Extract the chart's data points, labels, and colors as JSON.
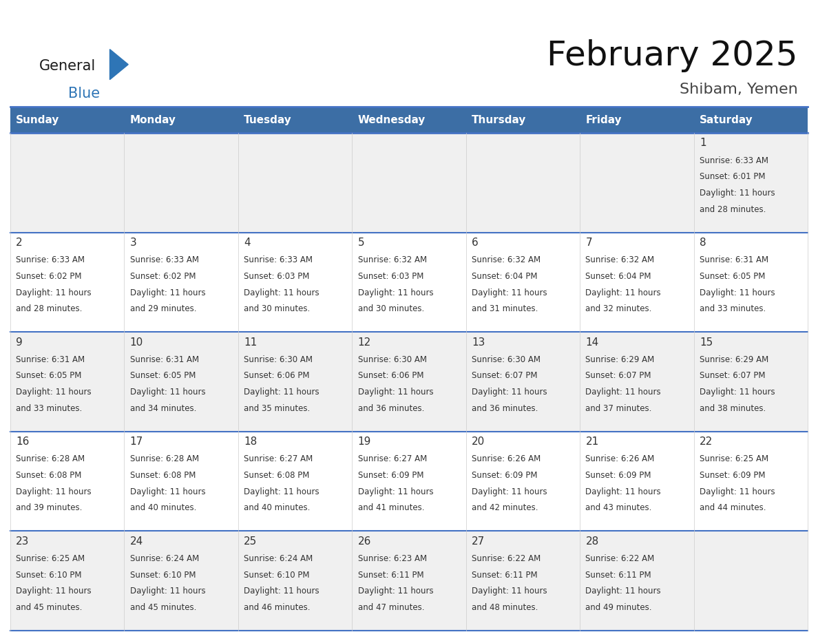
{
  "title": "February 2025",
  "subtitle": "Shibam, Yemen",
  "days_of_week": [
    "Sunday",
    "Monday",
    "Tuesday",
    "Wednesday",
    "Thursday",
    "Friday",
    "Saturday"
  ],
  "header_bg": "#3C6EA5",
  "header_text": "#FFFFFF",
  "row_bg_odd": "#F0F0F0",
  "row_bg_even": "#FFFFFF",
  "cell_border_color": "#4472C4",
  "cell_minor_border": "#CCCCCC",
  "text_color": "#333333",
  "logo_general_color": "#1A1A1A",
  "logo_blue_color": "#2E75B6",
  "days": [
    {
      "date": 1,
      "col": 6,
      "row": 0,
      "sunrise": "6:33 AM",
      "sunset": "6:01 PM",
      "daylight": "11 hours and 28 minutes."
    },
    {
      "date": 2,
      "col": 0,
      "row": 1,
      "sunrise": "6:33 AM",
      "sunset": "6:02 PM",
      "daylight": "11 hours and 28 minutes."
    },
    {
      "date": 3,
      "col": 1,
      "row": 1,
      "sunrise": "6:33 AM",
      "sunset": "6:02 PM",
      "daylight": "11 hours and 29 minutes."
    },
    {
      "date": 4,
      "col": 2,
      "row": 1,
      "sunrise": "6:33 AM",
      "sunset": "6:03 PM",
      "daylight": "11 hours and 30 minutes."
    },
    {
      "date": 5,
      "col": 3,
      "row": 1,
      "sunrise": "6:32 AM",
      "sunset": "6:03 PM",
      "daylight": "11 hours and 30 minutes."
    },
    {
      "date": 6,
      "col": 4,
      "row": 1,
      "sunrise": "6:32 AM",
      "sunset": "6:04 PM",
      "daylight": "11 hours and 31 minutes."
    },
    {
      "date": 7,
      "col": 5,
      "row": 1,
      "sunrise": "6:32 AM",
      "sunset": "6:04 PM",
      "daylight": "11 hours and 32 minutes."
    },
    {
      "date": 8,
      "col": 6,
      "row": 1,
      "sunrise": "6:31 AM",
      "sunset": "6:05 PM",
      "daylight": "11 hours and 33 minutes."
    },
    {
      "date": 9,
      "col": 0,
      "row": 2,
      "sunrise": "6:31 AM",
      "sunset": "6:05 PM",
      "daylight": "11 hours and 33 minutes."
    },
    {
      "date": 10,
      "col": 1,
      "row": 2,
      "sunrise": "6:31 AM",
      "sunset": "6:05 PM",
      "daylight": "11 hours and 34 minutes."
    },
    {
      "date": 11,
      "col": 2,
      "row": 2,
      "sunrise": "6:30 AM",
      "sunset": "6:06 PM",
      "daylight": "11 hours and 35 minutes."
    },
    {
      "date": 12,
      "col": 3,
      "row": 2,
      "sunrise": "6:30 AM",
      "sunset": "6:06 PM",
      "daylight": "11 hours and 36 minutes."
    },
    {
      "date": 13,
      "col": 4,
      "row": 2,
      "sunrise": "6:30 AM",
      "sunset": "6:07 PM",
      "daylight": "11 hours and 36 minutes."
    },
    {
      "date": 14,
      "col": 5,
      "row": 2,
      "sunrise": "6:29 AM",
      "sunset": "6:07 PM",
      "daylight": "11 hours and 37 minutes."
    },
    {
      "date": 15,
      "col": 6,
      "row": 2,
      "sunrise": "6:29 AM",
      "sunset": "6:07 PM",
      "daylight": "11 hours and 38 minutes."
    },
    {
      "date": 16,
      "col": 0,
      "row": 3,
      "sunrise": "6:28 AM",
      "sunset": "6:08 PM",
      "daylight": "11 hours and 39 minutes."
    },
    {
      "date": 17,
      "col": 1,
      "row": 3,
      "sunrise": "6:28 AM",
      "sunset": "6:08 PM",
      "daylight": "11 hours and 40 minutes."
    },
    {
      "date": 18,
      "col": 2,
      "row": 3,
      "sunrise": "6:27 AM",
      "sunset": "6:08 PM",
      "daylight": "11 hours and 40 minutes."
    },
    {
      "date": 19,
      "col": 3,
      "row": 3,
      "sunrise": "6:27 AM",
      "sunset": "6:09 PM",
      "daylight": "11 hours and 41 minutes."
    },
    {
      "date": 20,
      "col": 4,
      "row": 3,
      "sunrise": "6:26 AM",
      "sunset": "6:09 PM",
      "daylight": "11 hours and 42 minutes."
    },
    {
      "date": 21,
      "col": 5,
      "row": 3,
      "sunrise": "6:26 AM",
      "sunset": "6:09 PM",
      "daylight": "11 hours and 43 minutes."
    },
    {
      "date": 22,
      "col": 6,
      "row": 3,
      "sunrise": "6:25 AM",
      "sunset": "6:09 PM",
      "daylight": "11 hours and 44 minutes."
    },
    {
      "date": 23,
      "col": 0,
      "row": 4,
      "sunrise": "6:25 AM",
      "sunset": "6:10 PM",
      "daylight": "11 hours and 45 minutes."
    },
    {
      "date": 24,
      "col": 1,
      "row": 4,
      "sunrise": "6:24 AM",
      "sunset": "6:10 PM",
      "daylight": "11 hours and 45 minutes."
    },
    {
      "date": 25,
      "col": 2,
      "row": 4,
      "sunrise": "6:24 AM",
      "sunset": "6:10 PM",
      "daylight": "11 hours and 46 minutes."
    },
    {
      "date": 26,
      "col": 3,
      "row": 4,
      "sunrise": "6:23 AM",
      "sunset": "6:11 PM",
      "daylight": "11 hours and 47 minutes."
    },
    {
      "date": 27,
      "col": 4,
      "row": 4,
      "sunrise": "6:22 AM",
      "sunset": "6:11 PM",
      "daylight": "11 hours and 48 minutes."
    },
    {
      "date": 28,
      "col": 5,
      "row": 4,
      "sunrise": "6:22 AM",
      "sunset": "6:11 PM",
      "daylight": "11 hours and 49 minutes."
    }
  ]
}
